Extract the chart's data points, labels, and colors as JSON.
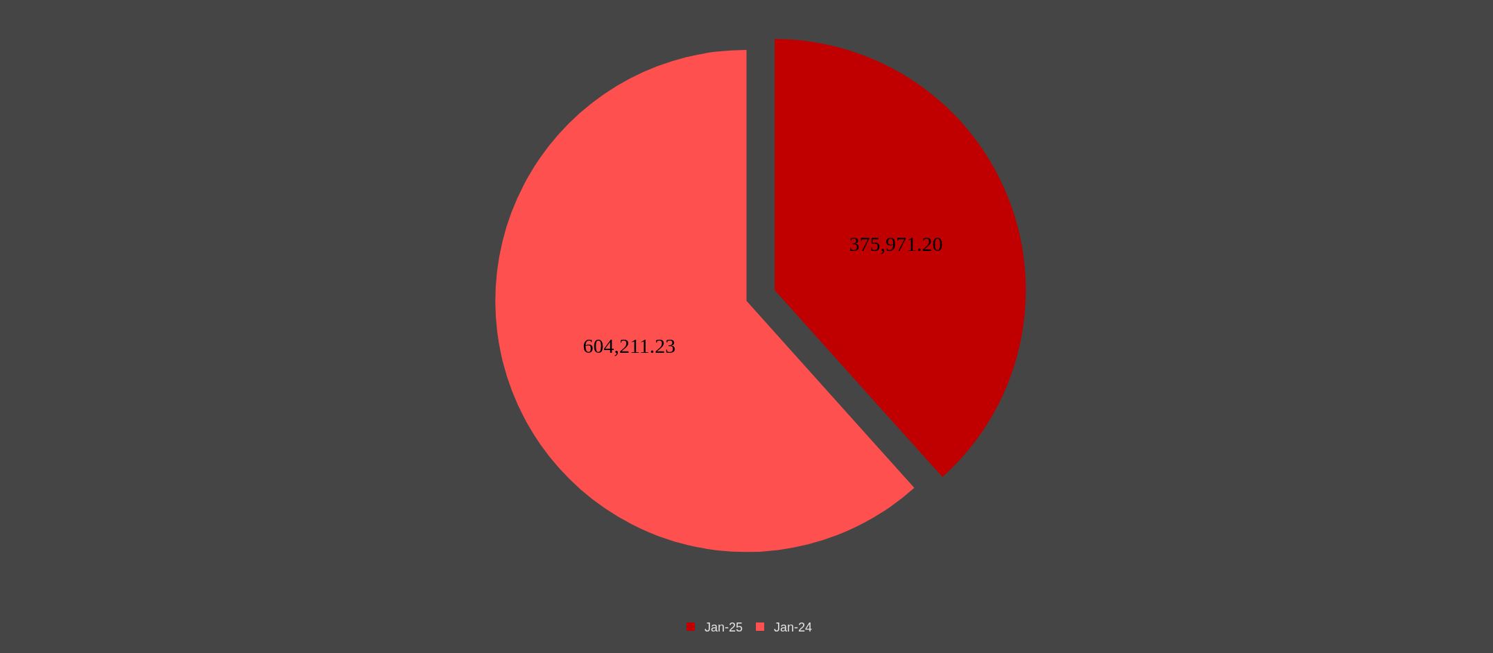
{
  "chart_data": {
    "type": "pie",
    "categories": [
      "Jan-25",
      "Jan-24"
    ],
    "values": [
      375971.2,
      604211.23
    ],
    "value_labels": [
      "375,971.20",
      "604,211.23"
    ],
    "colors": [
      "#c00000",
      "#ff5050"
    ],
    "legend": "bottom"
  }
}
